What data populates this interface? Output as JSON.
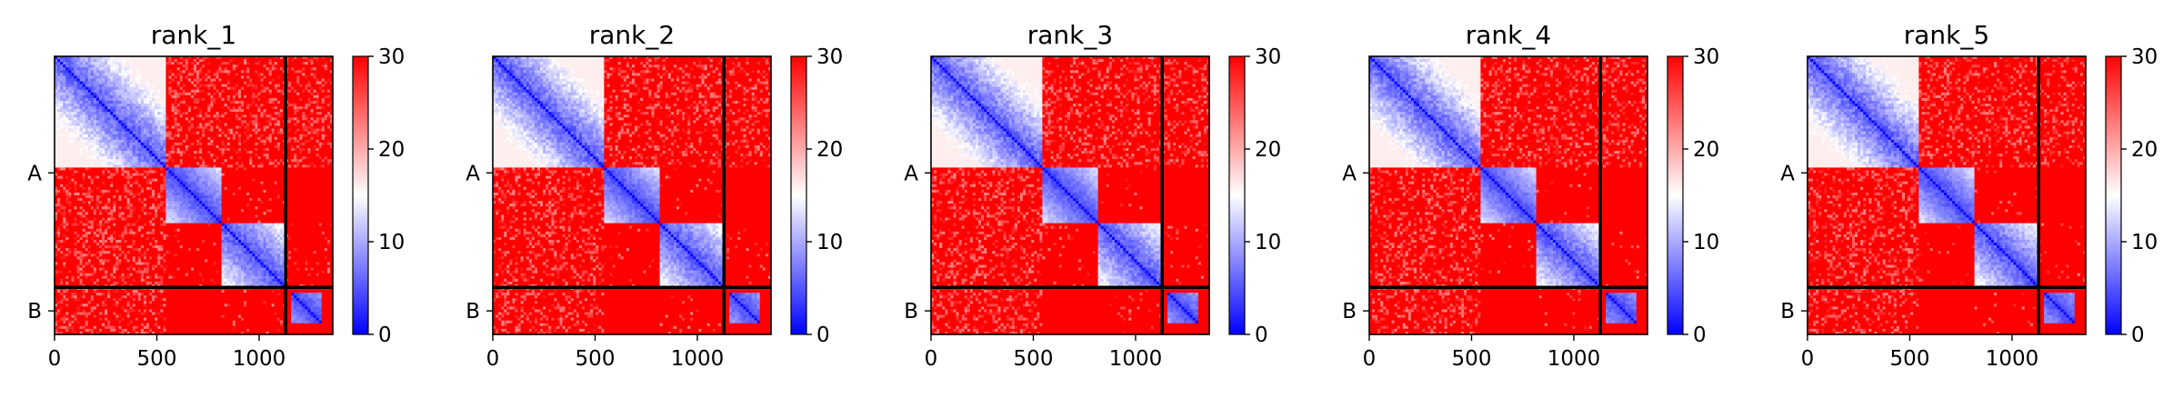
{
  "chart_data": [
    {
      "type": "heatmap",
      "title": "rank_1",
      "xlabel": "",
      "ylabel": "",
      "x_ticks": [
        "0",
        "500",
        "1000"
      ],
      "x_tick_values": [
        0,
        500,
        1000
      ],
      "y_ticks": [
        "A",
        "B"
      ],
      "y_tick_values": [
        570,
        1245
      ],
      "xlim": [
        0,
        1360
      ],
      "ylim": [
        1360,
        0
      ],
      "chain_boundaries": [
        1130
      ],
      "colormap": "bwr",
      "colorbar": {
        "range": [
          0,
          30
        ],
        "ticks": [
          "0",
          "10",
          "20",
          "30"
        ],
        "tick_values": [
          0,
          10,
          20,
          30
        ]
      },
      "domains": [
        {
          "range": [
            0,
            540
          ],
          "interchain_level": 0.35,
          "noise": 0.35
        },
        {
          "range": [
            540,
            810
          ],
          "interchain_level": 0.0,
          "noise": 0.2
        },
        {
          "range": [
            810,
            1130
          ],
          "interchain_level": 0.08,
          "noise": 0.3
        },
        {
          "range": [
            1150,
            1310
          ],
          "interchain_level": 0.0,
          "noise": 0.2
        }
      ]
    },
    {
      "type": "heatmap",
      "title": "rank_2",
      "xlabel": "",
      "ylabel": "",
      "x_ticks": [
        "0",
        "500",
        "1000"
      ],
      "x_tick_values": [
        0,
        500,
        1000
      ],
      "y_ticks": [
        "A",
        "B"
      ],
      "y_tick_values": [
        570,
        1245
      ],
      "xlim": [
        0,
        1360
      ],
      "ylim": [
        1360,
        0
      ],
      "chain_boundaries": [
        1130
      ],
      "colormap": "bwr",
      "colorbar": {
        "range": [
          0,
          30
        ],
        "ticks": [
          "0",
          "10",
          "20",
          "30"
        ],
        "tick_values": [
          0,
          10,
          20,
          30
        ]
      },
      "domains": [
        {
          "range": [
            0,
            540
          ],
          "interchain_level": 0.3,
          "noise": 0.35
        },
        {
          "range": [
            540,
            810
          ],
          "interchain_level": 0.0,
          "noise": 0.2
        },
        {
          "range": [
            810,
            1130
          ],
          "interchain_level": 0.05,
          "noise": 0.3
        },
        {
          "range": [
            1150,
            1310
          ],
          "interchain_level": 0.0,
          "noise": 0.2
        }
      ]
    },
    {
      "type": "heatmap",
      "title": "rank_3",
      "xlabel": "",
      "ylabel": "",
      "x_ticks": [
        "0",
        "500",
        "1000"
      ],
      "x_tick_values": [
        0,
        500,
        1000
      ],
      "y_ticks": [
        "A",
        "B"
      ],
      "y_tick_values": [
        570,
        1245
      ],
      "xlim": [
        0,
        1360
      ],
      "ylim": [
        1360,
        0
      ],
      "chain_boundaries": [
        1130
      ],
      "colormap": "bwr",
      "colorbar": {
        "range": [
          0,
          30
        ],
        "ticks": [
          "0",
          "10",
          "20",
          "30"
        ],
        "tick_values": [
          0,
          10,
          20,
          30
        ]
      },
      "domains": [
        {
          "range": [
            0,
            540
          ],
          "interchain_level": 0.3,
          "noise": 0.35
        },
        {
          "range": [
            540,
            810
          ],
          "interchain_level": 0.0,
          "noise": 0.2
        },
        {
          "range": [
            810,
            1130
          ],
          "interchain_level": 0.05,
          "noise": 0.3
        },
        {
          "range": [
            1150,
            1310
          ],
          "interchain_level": 0.0,
          "noise": 0.2
        }
      ]
    },
    {
      "type": "heatmap",
      "title": "rank_4",
      "xlabel": "",
      "ylabel": "",
      "x_ticks": [
        "0",
        "500",
        "1000"
      ],
      "x_tick_values": [
        0,
        500,
        1000
      ],
      "y_ticks": [
        "A",
        "B"
      ],
      "y_tick_values": [
        570,
        1245
      ],
      "xlim": [
        0,
        1360
      ],
      "ylim": [
        1360,
        0
      ],
      "chain_boundaries": [
        1130
      ],
      "colormap": "bwr",
      "colorbar": {
        "range": [
          0,
          30
        ],
        "ticks": [
          "0",
          "10",
          "20",
          "30"
        ],
        "tick_values": [
          0,
          10,
          20,
          30
        ]
      },
      "domains": [
        {
          "range": [
            0,
            540
          ],
          "interchain_level": 0.3,
          "noise": 0.35
        },
        {
          "range": [
            540,
            810
          ],
          "interchain_level": 0.0,
          "noise": 0.2
        },
        {
          "range": [
            810,
            1130
          ],
          "interchain_level": 0.05,
          "noise": 0.3
        },
        {
          "range": [
            1150,
            1310
          ],
          "interchain_level": 0.0,
          "noise": 0.2
        }
      ]
    },
    {
      "type": "heatmap",
      "title": "rank_5",
      "xlabel": "",
      "ylabel": "",
      "x_ticks": [
        "0",
        "500",
        "1000"
      ],
      "x_tick_values": [
        0,
        500,
        1000
      ],
      "y_ticks": [
        "A",
        "B"
      ],
      "y_tick_values": [
        570,
        1245
      ],
      "xlim": [
        0,
        1360
      ],
      "ylim": [
        1360,
        0
      ],
      "chain_boundaries": [
        1130
      ],
      "colormap": "bwr",
      "colorbar": {
        "range": [
          0,
          30
        ],
        "ticks": [
          "0",
          "10",
          "20",
          "30"
        ],
        "tick_values": [
          0,
          10,
          20,
          30
        ]
      },
      "domains": [
        {
          "range": [
            0,
            540
          ],
          "interchain_level": 0.3,
          "noise": 0.35
        },
        {
          "range": [
            540,
            810
          ],
          "interchain_level": 0.0,
          "noise": 0.2
        },
        {
          "range": [
            810,
            1130
          ],
          "interchain_level": 0.05,
          "noise": 0.3
        },
        {
          "range": [
            1150,
            1310
          ],
          "interchain_level": 0.0,
          "noise": 0.2
        }
      ]
    }
  ]
}
